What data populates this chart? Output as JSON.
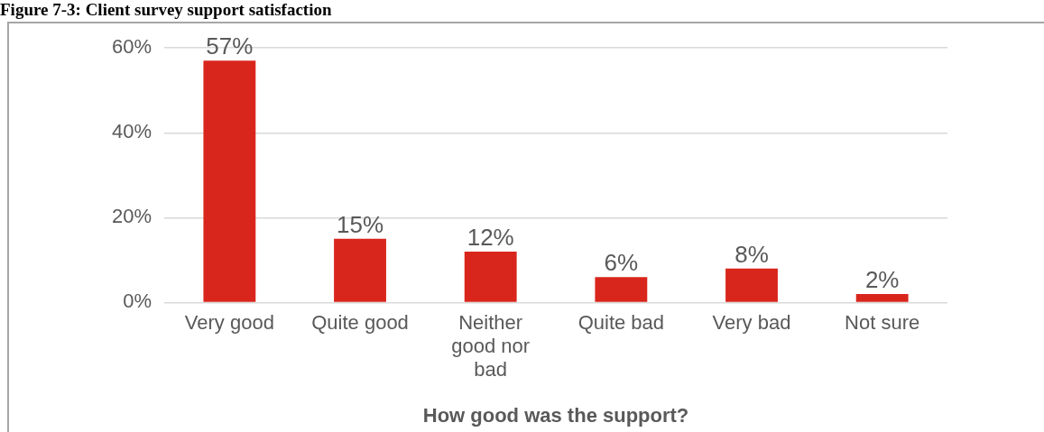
{
  "chart_data": {
    "type": "bar",
    "title": "Figure 7-3: Client survey support satisfaction",
    "xlabel": "How good was the support?",
    "categories": [
      "Very good",
      "Quite good",
      "Neither good nor bad",
      "Quite bad",
      "Very bad",
      "Not sure"
    ],
    "values": [
      57,
      15,
      12,
      6,
      8,
      2
    ],
    "value_labels": [
      "57%",
      "15%",
      "12%",
      "6%",
      "8%",
      "2%"
    ],
    "color": "#d9261c",
    "ylim": [
      0,
      60
    ],
    "yticks": [
      {
        "value": 0,
        "label": "0%"
      },
      {
        "value": 20,
        "label": "20%"
      },
      {
        "value": 40,
        "label": "40%"
      },
      {
        "value": 60,
        "label": "60%"
      }
    ],
    "grid": "y",
    "legend": false
  }
}
